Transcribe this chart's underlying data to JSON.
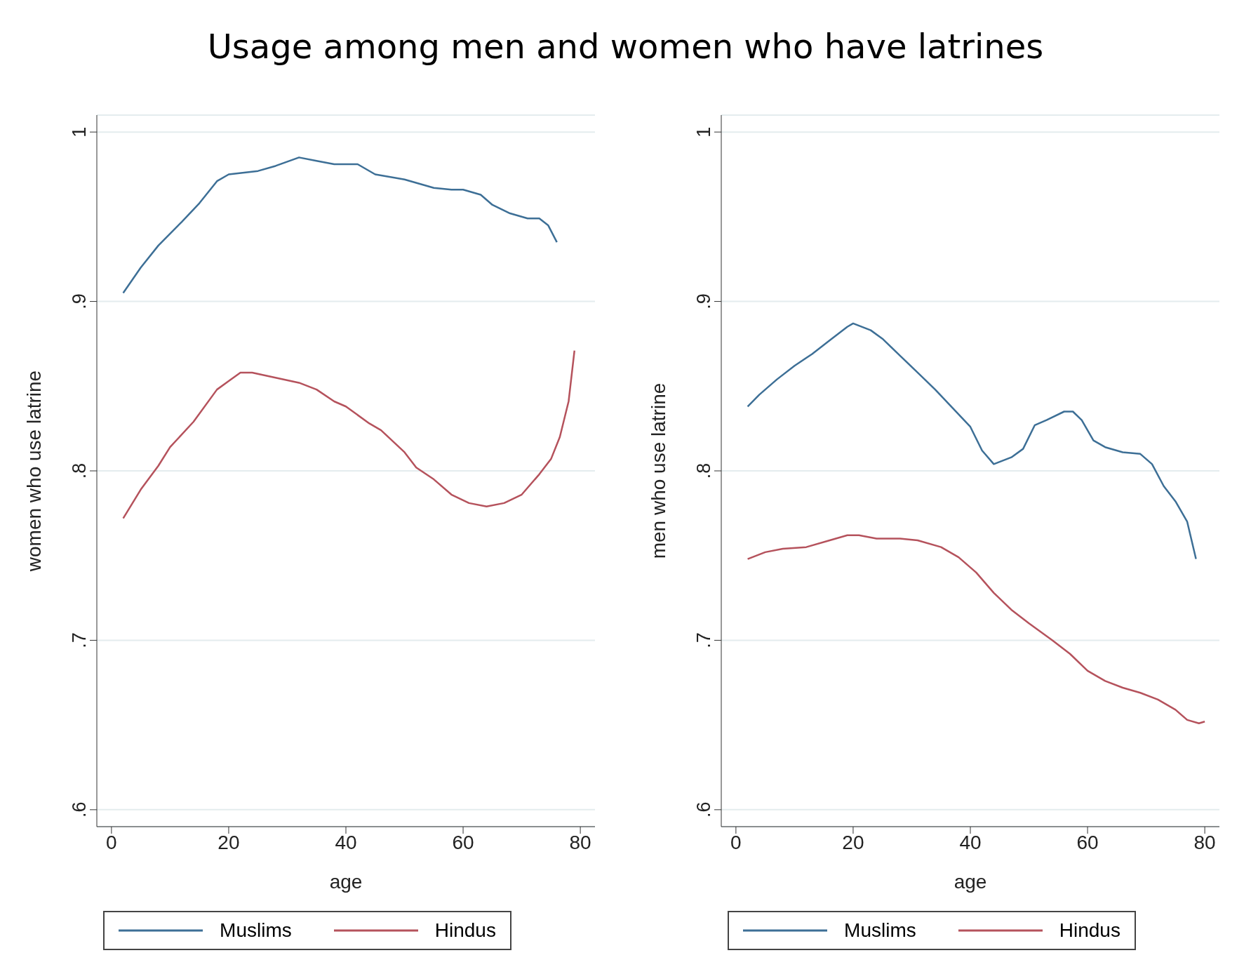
{
  "chart_data": [
    {
      "type": "line",
      "title": "Usage among men and women who have latrines",
      "xlabel": "age",
      "ylabel": "women who use latrine",
      "xlim": [
        -2.5,
        82.5
      ],
      "xticks": [
        0,
        20,
        40,
        60,
        80
      ],
      "ylim": [
        0.59,
        1.01
      ],
      "yticks": [
        {
          "value": 0.6,
          "label": ".6"
        },
        {
          "value": 0.7,
          "label": ".7"
        },
        {
          "value": 0.8,
          "label": ".8"
        },
        {
          "value": 0.9,
          "label": ".9"
        },
        {
          "value": 1,
          "label": "1"
        }
      ],
      "grid": "y",
      "legend": "bottom",
      "series": [
        {
          "name": "Muslims",
          "color": "#3d6f96",
          "x": [
            2,
            5,
            8,
            12,
            15,
            18,
            20,
            25,
            28,
            32,
            35,
            38,
            42,
            45,
            50,
            55,
            58,
            60,
            63,
            65,
            68,
            71,
            73,
            74.5,
            76
          ],
          "values": [
            0.905,
            0.92,
            0.933,
            0.947,
            0.958,
            0.971,
            0.975,
            0.977,
            0.98,
            0.985,
            0.983,
            0.981,
            0.981,
            0.975,
            0.972,
            0.967,
            0.966,
            0.966,
            0.963,
            0.957,
            0.952,
            0.949,
            0.949,
            0.945,
            0.935
          ]
        },
        {
          "name": "Hindus",
          "color": "#b5525c",
          "x": [
            2,
            5,
            8,
            10,
            14,
            18,
            20,
            22,
            24,
            28,
            32,
            35,
            38,
            40,
            44,
            46,
            50,
            52,
            55,
            58,
            61,
            64,
            67,
            70,
            73,
            75,
            76.5,
            78,
            79
          ],
          "values": [
            0.772,
            0.789,
            0.803,
            0.814,
            0.829,
            0.848,
            0.853,
            0.858,
            0.858,
            0.855,
            0.852,
            0.848,
            0.841,
            0.838,
            0.828,
            0.824,
            0.811,
            0.802,
            0.795,
            0.786,
            0.781,
            0.779,
            0.781,
            0.786,
            0.798,
            0.807,
            0.82,
            0.841,
            0.871
          ]
        }
      ]
    },
    {
      "type": "line",
      "xlabel": "age",
      "ylabel": "men who use latrine",
      "xlim": [
        -2.5,
        82.5
      ],
      "xticks": [
        0,
        20,
        40,
        60,
        80
      ],
      "ylim": [
        0.59,
        1.01
      ],
      "yticks": [
        {
          "value": 0.6,
          "label": ".6"
        },
        {
          "value": 0.7,
          "label": ".7"
        },
        {
          "value": 0.8,
          "label": ".8"
        },
        {
          "value": 0.9,
          "label": ".9"
        },
        {
          "value": 1,
          "label": "1"
        }
      ],
      "grid": "y",
      "legend": "bottom",
      "series": [
        {
          "name": "Muslims",
          "color": "#3d6f96",
          "x": [
            2,
            4,
            7,
            10,
            13,
            16,
            19,
            20,
            23,
            25,
            28,
            31,
            34,
            37,
            40,
            42,
            44,
            47,
            49,
            51,
            53,
            56,
            57.5,
            59,
            61,
            63,
            66,
            69,
            71,
            73,
            75,
            77,
            78.5
          ],
          "values": [
            0.838,
            0.845,
            0.854,
            0.862,
            0.869,
            0.877,
            0.885,
            0.887,
            0.883,
            0.878,
            0.868,
            0.858,
            0.848,
            0.837,
            0.826,
            0.812,
            0.804,
            0.808,
            0.813,
            0.827,
            0.83,
            0.835,
            0.835,
            0.83,
            0.818,
            0.814,
            0.811,
            0.81,
            0.804,
            0.791,
            0.782,
            0.77,
            0.748
          ]
        },
        {
          "name": "Hindus",
          "color": "#b5525c",
          "x": [
            2,
            5,
            8,
            12,
            16,
            19,
            21,
            24,
            28,
            31,
            35,
            38,
            41,
            44,
            47,
            50,
            54,
            57,
            60,
            63,
            66,
            69,
            72,
            75,
            77,
            79,
            80
          ],
          "values": [
            0.748,
            0.752,
            0.754,
            0.755,
            0.759,
            0.762,
            0.762,
            0.76,
            0.76,
            0.759,
            0.755,
            0.749,
            0.74,
            0.728,
            0.718,
            0.71,
            0.7,
            0.692,
            0.682,
            0.676,
            0.672,
            0.669,
            0.665,
            0.659,
            0.653,
            0.651,
            0.652
          ]
        }
      ]
    }
  ]
}
